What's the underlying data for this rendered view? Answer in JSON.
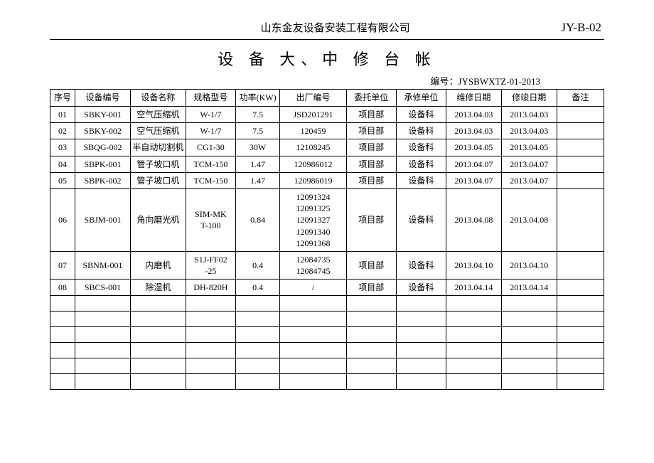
{
  "header": {
    "company": "山东金友设备安装工程有限公司",
    "docno": "JY-B-02"
  },
  "title": "设 备 大、中 修 台 帐",
  "code_label": "编号：",
  "code_value": "JYSBWXTZ-01-2013",
  "columns": [
    "序号",
    "设备编号",
    "设备名称",
    "规格型号",
    "功率(KW)",
    "出厂编号",
    "委托单位",
    "承修单位",
    "维修日期",
    "修竣日期",
    "备注"
  ],
  "col_widths": [
    "4.5%",
    "10%",
    "10%",
    "9%",
    "8%",
    "12%",
    "9%",
    "9%",
    "10%",
    "10%",
    "8.5%"
  ],
  "rows": [
    [
      "01",
      "SBKY-001",
      "空气压缩机",
      "W-1/7",
      "7.5",
      "JSD201291",
      "项目部",
      "设备科",
      "2013.04.03",
      "2013.04.03",
      ""
    ],
    [
      "02",
      "SBKY-002",
      "空气压缩机",
      "W-1/7",
      "7.5",
      "120459",
      "项目部",
      "设备科",
      "2013.04.03",
      "2013.04.03",
      ""
    ],
    [
      "03",
      "SBQG-002",
      "半自动切割机",
      "CG1-30",
      "30W",
      "12108245",
      "项目部",
      "设备科",
      "2013.04.05",
      "2013.04.05",
      ""
    ],
    [
      "04",
      "SBPK-001",
      "管子坡口机",
      "TCM-150",
      "1.47",
      "120986012",
      "项目部",
      "设备科",
      "2013.04.07",
      "2013.04.07",
      ""
    ],
    [
      "05",
      "SBPK-002",
      "管子坡口机",
      "TCM-150",
      "1.47",
      "120986019",
      "项目部",
      "设备科",
      "2013.04.07",
      "2013.04.07",
      ""
    ],
    [
      "06",
      "SBJM-001",
      "角向磨光机",
      "SIM-MK\nT-100",
      "0.84",
      "12091324\n12091325\n12091327\n12091340\n12091368",
      "项目部",
      "设备科",
      "2013.04.08",
      "2013.04.08",
      ""
    ],
    [
      "07",
      "SBNM-001",
      "内磨机",
      "S1J-FF02\n-25",
      "0.4",
      "12084735\n12084745",
      "项目部",
      "设备科",
      "2013.04.10",
      "2013.04.10",
      ""
    ],
    [
      "08",
      "SBCS-001",
      "除湿机",
      "DH-820H",
      "0.4",
      "/",
      "项目部",
      "设备科",
      "2013.04.14",
      "2013.04.14",
      ""
    ]
  ],
  "empty_rows": 6,
  "style": {
    "background_color": "#ffffff",
    "text_color": "#000000",
    "border_color": "#000000",
    "title_fontsize": 22,
    "body_fontsize": 12,
    "header_fontsize": 15,
    "font_family": "SimSun"
  }
}
